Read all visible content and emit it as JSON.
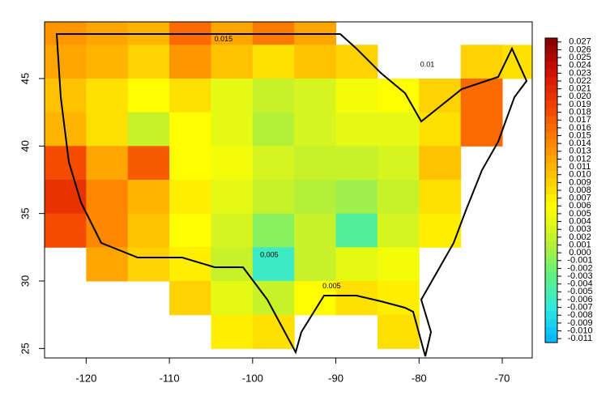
{
  "chart_data": {
    "type": "heatmap",
    "xlim": [
      -125,
      -66.4
    ],
    "ylim": [
      24.3,
      49.2
    ],
    "xticks": [
      -120,
      -110,
      -100,
      -90,
      -80,
      -70
    ],
    "yticks": [
      25,
      30,
      35,
      40,
      45
    ],
    "lon_edges": [
      -125,
      -120,
      -115,
      -110,
      -105,
      -100,
      -95,
      -90,
      -85,
      -80,
      -75,
      -70,
      -65
    ],
    "lat_edges": [
      50,
      47.5,
      45,
      42.5,
      40,
      37.5,
      35,
      32.5,
      30,
      27.5,
      25
    ],
    "z": [
      [
        0.013,
        0.012,
        0.011,
        0.016,
        0.012,
        0.015,
        0.012,
        null,
        null,
        null,
        null,
        null
      ],
      [
        0.012,
        0.011,
        0.009,
        0.013,
        0.01,
        0.008,
        0.01,
        0.009,
        null,
        null,
        0.009,
        0.008
      ],
      [
        0.01,
        0.008,
        0.006,
        0.008,
        0.004,
        0.002,
        0.003,
        0.005,
        0.006,
        0.009,
        0.016,
        null
      ],
      [
        0.011,
        0.008,
        0.002,
        0.006,
        0.004,
        0.001,
        0.003,
        0.004,
        0.004,
        0.008,
        0.016,
        null
      ],
      [
        0.018,
        0.012,
        0.017,
        0.006,
        0.005,
        0.003,
        0.002,
        0.002,
        0.003,
        0.01,
        null,
        null
      ],
      [
        0.02,
        0.014,
        0.011,
        0.007,
        0.004,
        0.002,
        0.001,
        0.0,
        0.002,
        0.008,
        null,
        null
      ],
      [
        0.018,
        0.014,
        0.01,
        0.006,
        0.003,
        -0.001,
        0.002,
        -0.004,
        0.003,
        0.007,
        null,
        null
      ],
      [
        null,
        0.012,
        0.009,
        0.007,
        0.002,
        -0.006,
        0.002,
        0.004,
        0.005,
        null,
        null,
        null
      ],
      [
        null,
        null,
        null,
        0.009,
        0.004,
        0.002,
        0.006,
        0.008,
        0.007,
        null,
        null,
        null
      ],
      [
        null,
        null,
        null,
        null,
        0.007,
        0.008,
        null,
        null,
        0.008,
        null,
        null,
        null
      ]
    ],
    "clim": [
      -0.0115,
      0.0275
    ],
    "colormap": [
      "#00b4ff",
      "#30e8e0",
      "#60f080",
      "#c0f030",
      "#ffff00",
      "#ffc000",
      "#ff8000",
      "#f04000",
      "#d01000",
      "#800000"
    ],
    "colorbar_ticks": [
      0.027,
      0.026,
      0.025,
      0.024,
      0.023,
      0.022,
      0.021,
      {
        "value": 0.02,
        "label": "0.020"
      },
      0.019,
      0.018,
      0.017,
      0.016,
      0.015,
      0.014,
      0.013,
      0.012,
      0.011,
      {
        "value": 0.01,
        "label": "0.010"
      },
      0.009,
      0.008,
      0.007,
      0.006,
      0.005,
      0.004,
      0.003,
      0.002,
      0.001,
      {
        "value": 0,
        "label": "0.000"
      },
      -0.001,
      -0.002,
      -0.003,
      -0.004,
      -0.005,
      -0.006,
      -0.007,
      -0.008,
      -0.009,
      {
        "value": -0.01,
        "label": "-0.010"
      },
      -0.011
    ],
    "annotations": [
      {
        "text": "0.015",
        "x": -103.5,
        "y": 47.9
      },
      {
        "text": "0.01",
        "x": -79,
        "y": 46.0
      },
      {
        "text": "0.005",
        "x": -90.5,
        "y": 29.6
      },
      {
        "text": "0.005",
        "x": -98,
        "y": 31.9
      }
    ]
  }
}
